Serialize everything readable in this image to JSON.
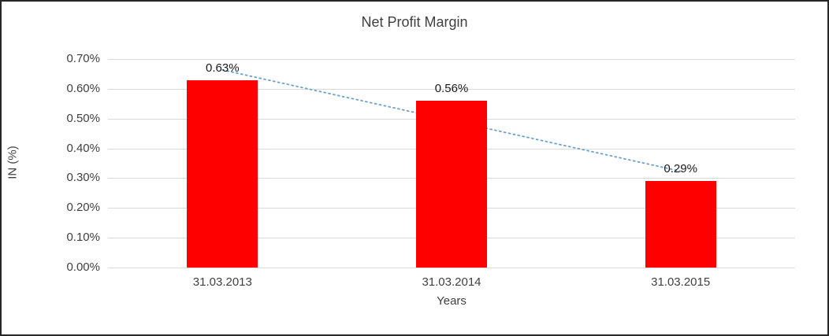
{
  "chart_data": {
    "type": "bar",
    "title": "Net Profit Margin",
    "categories": [
      "31.03.2013",
      "31.03.2014",
      "31.03.2015"
    ],
    "values": [
      0.63,
      0.56,
      0.29
    ],
    "value_labels": [
      "0.63%",
      "0.56%",
      "0.29%"
    ],
    "xlabel": "Years",
    "ylabel": "IN (%)",
    "ylim": [
      0,
      0.7
    ],
    "ytick_step": 0.1,
    "yticks": [
      "0.00%",
      "0.10%",
      "0.20%",
      "0.30%",
      "0.40%",
      "0.50%",
      "0.60%",
      "0.70%"
    ],
    "grid": true,
    "legend": "none",
    "bar_color": "#ff0000",
    "gridline_color": "#d9d9d9",
    "trendline": {
      "type": "linear",
      "style": "dotted",
      "color": "#6fa0c7"
    }
  }
}
